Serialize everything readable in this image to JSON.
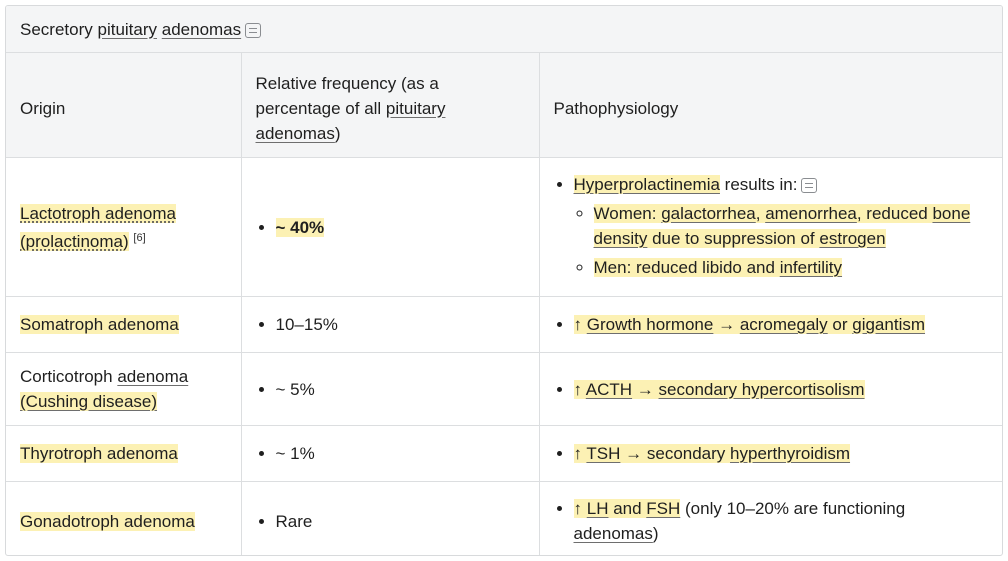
{
  "table": {
    "caption": {
      "pre": "Secretory ",
      "pituitary": "pituitary",
      "adenomas": "adenomas"
    },
    "headers": {
      "origin": "Origin",
      "frequency_pre": "Relative frequency (as a percentage of all ",
      "frequency_pituitary": "pituitary",
      "frequency_adenomas": "adenomas",
      "frequency_post": ")",
      "pathophysiology": "Pathophysiology"
    },
    "rows": {
      "lactotroph": {
        "origin_a": "Lactotroph adenoma",
        "origin_b": "(prolactinoma)",
        "ref": "[6]",
        "frequency": "~ 40%",
        "main_term": "Hyperprolactinemia",
        "main_rest": " results in:",
        "women_pre": "Women: ",
        "galactorrhea": "galactorrhea",
        "comma1": ", ",
        "amenorrhea": "amenorrhea",
        "reduced": ", reduced ",
        "bone_density": "bone density",
        "due_to": " due to suppression of ",
        "estrogen": "estrogen",
        "men_pre": "Men: reduced libido and ",
        "infertility": "infertility"
      },
      "somatotroph": {
        "origin": "Somatroph adenoma",
        "frequency": "10–15%",
        "arrow_up": "↑ ",
        "growth_hormone": "Growth hormone",
        "arrow": " → ",
        "acromegaly": "acromegaly",
        "or": " or ",
        "gigantism": "gigantism"
      },
      "corticotroph": {
        "origin_pre": "Corticotroph ",
        "origin_adenoma": "adenoma",
        "cushing": "(Cushing disease)",
        "frequency": "~ 5%",
        "arrow_up": "↑ ",
        "acth": "ACTH",
        "arrow": " → ",
        "secondary": "secondary hypercortisolism"
      },
      "thyrotroph": {
        "origin": "Thyrotroph adenoma",
        "frequency": "~ 1%",
        "arrow_up": "↑ ",
        "tsh": "TSH",
        "arrow": " → secondary ",
        "hyperthyroidism": "hyperthyroidism"
      },
      "gonadotroph": {
        "origin": "Gonadotroph adenoma",
        "frequency": "Rare",
        "arrow_up": "↑ ",
        "lh": "LH",
        "and": " and ",
        "fsh": "FSH",
        "rest": " (only 10–20% are functioning ",
        "adenomas": "adenomas",
        "close": ")"
      }
    }
  },
  "icons": {
    "note": "note-icon"
  },
  "colors": {
    "highlight": "#fcf1b4",
    "header_bg": "#f4f5f6",
    "border": "#dcdee0"
  }
}
